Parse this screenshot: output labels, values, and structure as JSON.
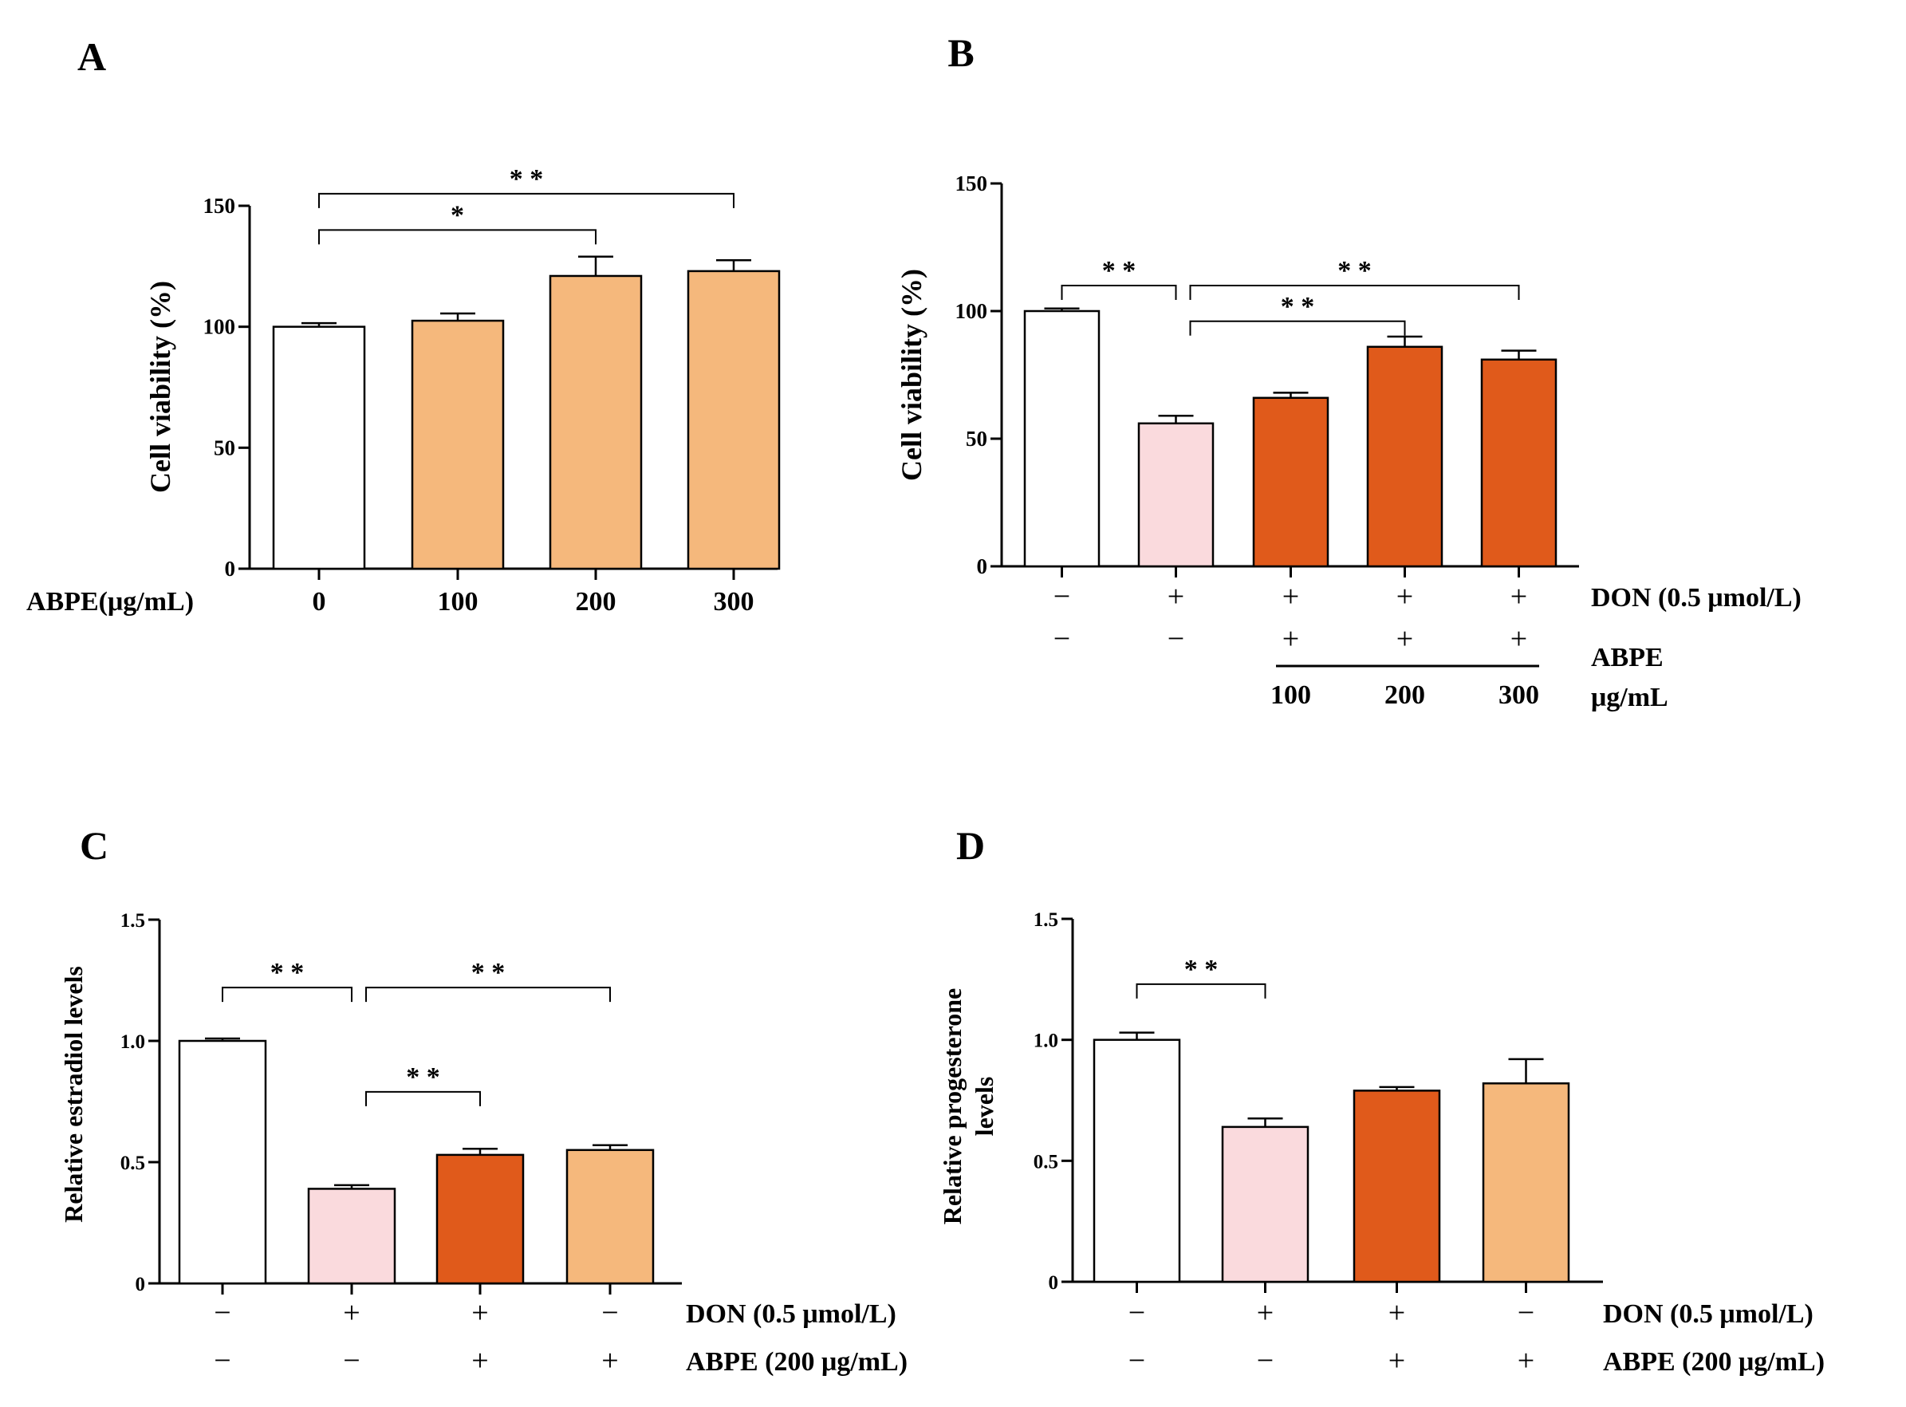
{
  "colors": {
    "control": "#ffffff",
    "don": "#fadadd",
    "don_abpe": "#e05a1b",
    "abpe": "#f5b87c"
  },
  "chart_data": [
    {
      "panel": "A",
      "type": "bar",
      "ylabel": "Cell viability (%)",
      "ylim": [
        0,
        150
      ],
      "yticks": [
        "0",
        "50",
        "100",
        "150"
      ],
      "row_labels": [
        "ABPE(μg/mL)"
      ],
      "categories": [
        "0",
        "100",
        "200",
        "300"
      ],
      "values": [
        100,
        102.5,
        121,
        123
      ],
      "errors": [
        1.5,
        3,
        8,
        4.5
      ],
      "fill_keys": [
        "control",
        "abpe",
        "abpe",
        "abpe"
      ],
      "significance": [
        {
          "from": 0,
          "to": 2,
          "label": "*",
          "y": 140
        },
        {
          "from": 0,
          "to": 3,
          "label": "* *",
          "y": 155
        }
      ]
    },
    {
      "panel": "B",
      "type": "bar",
      "ylabel": "Cell viability (%)",
      "ylim": [
        0,
        150
      ],
      "yticks": [
        "0",
        "50",
        "100",
        "150"
      ],
      "row_labels": [
        "DON (0.5 μmol/L)",
        "ABPE",
        "μg/mL"
      ],
      "treatment_rows": [
        [
          "−",
          "+",
          "+",
          "+",
          "+"
        ],
        [
          "−",
          "−",
          "+",
          "+",
          "+"
        ]
      ],
      "dose_labels": [
        "100",
        "200",
        "300"
      ],
      "values": [
        100,
        56,
        66,
        86,
        81
      ],
      "errors": [
        1,
        3,
        2,
        4,
        3.5
      ],
      "fill_keys": [
        "control",
        "don",
        "don_abpe",
        "don_abpe",
        "don_abpe"
      ],
      "significance": [
        {
          "from": 0,
          "to": 1,
          "label": "* *",
          "y": 110
        },
        {
          "from": 1,
          "to": 3,
          "label": "* *",
          "y": 96
        },
        {
          "from": 1,
          "to": 4,
          "label": "* *",
          "y": 110
        }
      ]
    },
    {
      "panel": "C",
      "type": "bar",
      "ylabel": "Relative estradiol levels",
      "ylim": [
        0,
        1.5
      ],
      "yticks": [
        "0",
        "0.5",
        "1.0",
        "1.5"
      ],
      "row_labels": [
        "DON (0.5 μmol/L)",
        "ABPE (200 μg/mL)"
      ],
      "treatment_rows": [
        [
          "−",
          "+",
          "+",
          "−"
        ],
        [
          "−",
          "−",
          "+",
          "+"
        ]
      ],
      "values": [
        1.0,
        0.39,
        0.53,
        0.55
      ],
      "errors": [
        0.01,
        0.015,
        0.025,
        0.02
      ],
      "fill_keys": [
        "control",
        "don",
        "don_abpe",
        "abpe"
      ],
      "significance": [
        {
          "from": 0,
          "to": 1,
          "label": "* *",
          "y": 1.22
        },
        {
          "from": 1,
          "to": 2,
          "label": "* *",
          "y": 0.79
        },
        {
          "from": 1,
          "to": 3,
          "label": "* *",
          "y": 1.22
        }
      ]
    },
    {
      "panel": "D",
      "type": "bar",
      "ylabel": "Relative progesterone levels",
      "ylabel_lines": [
        "Relative progesterone",
        "levels"
      ],
      "ylim": [
        0,
        1.5
      ],
      "yticks": [
        "0",
        "0.5",
        "1.0",
        "1.5"
      ],
      "row_labels": [
        "DON (0.5 μmol/L)",
        "ABPE (200 μg/mL)"
      ],
      "treatment_rows": [
        [
          "−",
          "+",
          "+",
          "−"
        ],
        [
          "−",
          "−",
          "+",
          "+"
        ]
      ],
      "values": [
        1.0,
        0.64,
        0.79,
        0.82
      ],
      "errors": [
        0.03,
        0.035,
        0.015,
        0.1
      ],
      "fill_keys": [
        "control",
        "don",
        "don_abpe",
        "abpe"
      ],
      "significance": [
        {
          "from": 0,
          "to": 1,
          "label": "* *",
          "y": 1.23
        }
      ]
    }
  ]
}
